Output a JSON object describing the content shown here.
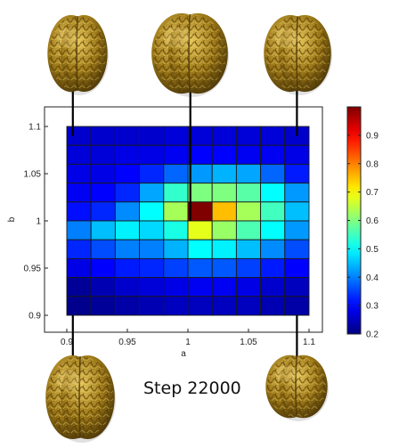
{
  "chart_data": {
    "type": "heatmap",
    "title": "",
    "xlabel": "a",
    "ylabel": "b",
    "x_range": [
      0.9,
      1.1
    ],
    "y_range": [
      0.9,
      1.1
    ],
    "x_ticks": [
      "0.9",
      "0.95",
      "1",
      "1.05",
      "1.1"
    ],
    "y_ticks": [
      "0.9",
      "0.95",
      "1",
      "1.05",
      "1.1"
    ],
    "x_tick_values": [
      0.9,
      0.95,
      1.0,
      1.05,
      1.1
    ],
    "y_tick_values": [
      0.9,
      0.95,
      1.0,
      1.05,
      1.1
    ],
    "grid": {
      "cols": 10,
      "rows": 10,
      "row_order": "top-to-bottom",
      "values": [
        [
          0.26,
          0.26,
          0.26,
          0.26,
          0.27,
          0.27,
          0.27,
          0.27,
          0.27,
          0.26
        ],
        [
          0.27,
          0.27,
          0.28,
          0.28,
          0.29,
          0.3,
          0.3,
          0.29,
          0.29,
          0.28
        ],
        [
          0.28,
          0.28,
          0.3,
          0.33,
          0.38,
          0.42,
          0.44,
          0.43,
          0.38,
          0.32
        ],
        [
          0.29,
          0.3,
          0.33,
          0.43,
          0.54,
          0.6,
          0.6,
          0.57,
          0.5,
          0.42
        ],
        [
          0.31,
          0.33,
          0.41,
          0.5,
          0.63,
          1.0,
          0.75,
          0.63,
          0.55,
          0.45
        ],
        [
          0.4,
          0.45,
          0.49,
          0.47,
          0.52,
          0.68,
          0.62,
          0.56,
          0.5,
          0.42
        ],
        [
          0.33,
          0.36,
          0.4,
          0.4,
          0.44,
          0.5,
          0.49,
          0.45,
          0.41,
          0.36
        ],
        [
          0.28,
          0.3,
          0.32,
          0.33,
          0.35,
          0.37,
          0.37,
          0.35,
          0.32,
          0.3
        ],
        [
          0.22,
          0.24,
          0.26,
          0.27,
          0.28,
          0.29,
          0.29,
          0.28,
          0.26,
          0.25
        ],
        [
          0.21,
          0.22,
          0.23,
          0.24,
          0.25,
          0.25,
          0.25,
          0.25,
          0.24,
          0.23
        ]
      ]
    },
    "colorbar": {
      "range": [
        0.2,
        1.0
      ],
      "ticks": [
        "0.2",
        "0.3",
        "0.4",
        "0.5",
        "0.6",
        "0.7",
        "0.8",
        "0.9"
      ],
      "tick_values": [
        0.2,
        0.3,
        0.4,
        0.5,
        0.6,
        0.7,
        0.8,
        0.9
      ],
      "colormap": "jet"
    }
  },
  "annotation": {
    "step_label": "Step 22000"
  },
  "callouts": [
    {
      "name": "brain-render-top-left",
      "a": 0.905,
      "b": 1.09
    },
    {
      "name": "brain-render-top-center",
      "a": 1.002,
      "b": 1.0
    },
    {
      "name": "brain-render-top-right",
      "a": 1.09,
      "b": 1.09
    },
    {
      "name": "brain-render-bottom-left",
      "a": 0.905,
      "b": 0.9
    },
    {
      "name": "brain-render-bottom-right",
      "a": 1.09,
      "b": 0.9
    }
  ],
  "colors": {
    "brain_base": "#8a6a12",
    "brain_highlight": "#d9b84a",
    "brain_shadow": "#4a3506",
    "cell_border": "#1a1a1a"
  }
}
